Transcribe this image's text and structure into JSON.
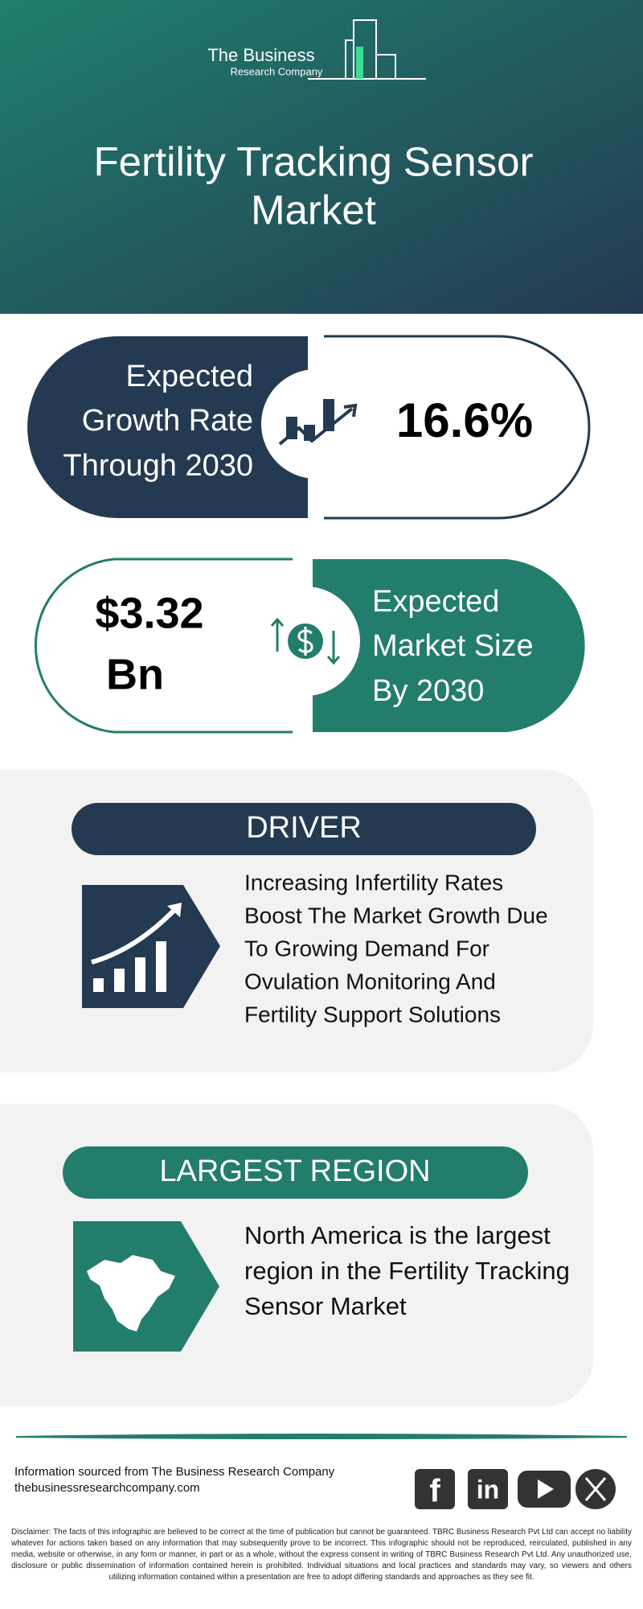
{
  "header": {
    "logo": [
      "The Business",
      "Research Company"
    ],
    "title": [
      "Fertility Tracking Sensor",
      "Market"
    ]
  },
  "growth": {
    "label": [
      "Expected",
      "Growth Rate",
      "Through 2030"
    ],
    "value": "16.6%"
  },
  "market_size": {
    "value": [
      "$3.32",
      "Bn"
    ],
    "label": [
      "Expected",
      "Market Size",
      "By 2030"
    ]
  },
  "driver": {
    "title": "DRIVER",
    "text": [
      "Increasing Infertility Rates",
      "Boost The Market Growth Due",
      "To Growing Demand For",
      "Ovulation Monitoring And",
      "Fertility Support Solutions"
    ]
  },
  "region": {
    "title": "LARGEST REGION",
    "text": [
      "North America is the largest",
      "region in the Fertility Tracking",
      "Sensor Market"
    ]
  },
  "footer": {
    "source": [
      "Information sourced from The Business Research Company",
      "thebusinessresearchcompany.com"
    ],
    "social": [
      "f",
      "in"
    ],
    "disclaimer": "Disclaimer: The facts of this infographic are believed to be correct at the time of publication but cannot be guaranteed. TBRC Business Research Pvt Ltd can accept no liability whatever for actions taken based on any information that may subsequently prove to be incorrect. This infographic should not be reproduced, reirculated, published in any media, website or otherwise, in any form or manner, in part or as a whole, without the express consent in writing of TBRC Business Research Pvt Ltd. Any unauthorized use, disclosure or public dissemination of information contained herein is prohibited. Individual situations and local practices and standards may vary, so viewers and others utilizing information contained within a presentation are free to adopt differing standards and approaches as they see fit."
  }
}
